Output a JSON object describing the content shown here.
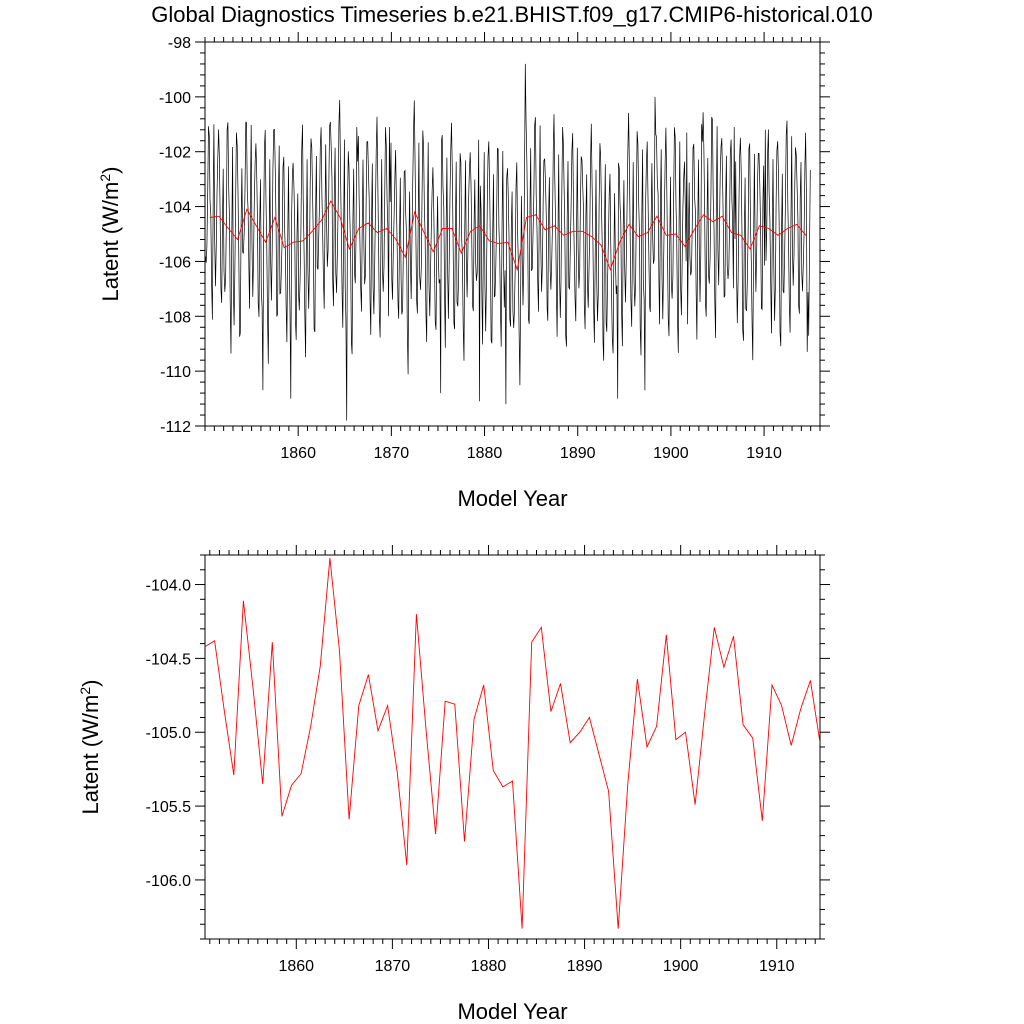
{
  "title": "Global Diagnostics Timeseries b.e21.BHIST.f09_g17.CMIP6-historical.010",
  "colors": {
    "monthly": "#000000",
    "annual": "#ff0000",
    "background": "#ffffff"
  },
  "chart_data": [
    {
      "type": "line",
      "xlabel": "Model Year",
      "ylabel": "Latent (W/m²)",
      "ylabel_main": "Latent (W/m",
      "ylabel_sup": "2",
      "ylabel_end": ")",
      "xlim": [
        1850,
        1916
      ],
      "ylim": [
        -112,
        -98
      ],
      "xticks": [
        1860,
        1870,
        1880,
        1890,
        1900,
        1910
      ],
      "xtick_labels": [
        "1860",
        "1870",
        "1880",
        "1890",
        "1900",
        "1910"
      ],
      "yticks": [
        -112,
        -110,
        -108,
        -106,
        -104,
        -102,
        -100,
        -98
      ],
      "ytick_labels": [
        "-112",
        "-110",
        "-108",
        "-106",
        "-104",
        "-102",
        "-100",
        "-98"
      ],
      "grid": false,
      "series": [
        {
          "color": "#000000",
          "monthly_pattern": [
            -106.4,
            -107.4,
            -106.2,
            -104.1,
            -102.0,
            -101.6,
            -103.5,
            -105.0,
            -107.8,
            -108.7,
            -104.8,
            -102.4
          ],
          "yearly_mean": [
            -104.4,
            -104.35,
            -104.8,
            -105.2,
            -104.1,
            -104.7,
            -105.3,
            -104.4,
            -105.5,
            -105.3,
            -105.25,
            -104.9,
            -104.5,
            -103.8,
            -104.4,
            -105.55,
            -104.8,
            -104.6,
            -104.95,
            -104.8,
            -105.2,
            -105.85,
            -104.2,
            -104.95,
            -105.65,
            -104.8,
            -104.8,
            -105.7,
            -104.9,
            -104.7,
            -105.25,
            -105.35,
            -105.3,
            -106.3,
            -104.4,
            -104.3,
            -104.85,
            -104.7,
            -105.05,
            -104.9,
            -104.9,
            -105.1,
            -105.4,
            -106.3,
            -105.3,
            -104.65,
            -105.1,
            -104.95,
            -104.35,
            -105.05,
            -105.0,
            -105.45,
            -104.85,
            -104.3,
            -104.55,
            -104.35,
            -104.95,
            -105.05,
            -105.55,
            -104.7,
            -104.8,
            -105.05,
            -104.8,
            -104.65,
            -105.05
          ],
          "spikes": [
            [
              1851.0,
              -101.0
            ],
            [
              1852.4,
              -101.2
            ],
            [
              1853.4,
              -101.3
            ],
            [
              1856.2,
              -110.7
            ],
            [
              1859.2,
              -111.0
            ],
            [
              1864.4,
              -101.0
            ],
            [
              1865.2,
              -111.8
            ],
            [
              1866.3,
              -101.1
            ],
            [
              1869.8,
              -101.1
            ],
            [
              1875.3,
              -110.8
            ],
            [
              1879.5,
              -111.1
            ],
            [
              1882.3,
              -111.2
            ],
            [
              1884.4,
              -98.8
            ],
            [
              1888.4,
              -101.1
            ],
            [
              1894.3,
              -111.0
            ],
            [
              1897.2,
              -110.7
            ],
            [
              1898.3,
              -100.0
            ],
            [
              1901.7,
              -101.3
            ],
            [
              1903.3,
              -101.0
            ],
            [
              1906.8,
              -101.1
            ],
            [
              1910.1,
              -101.2
            ],
            [
              1914.6,
              -109.3
            ]
          ]
        },
        {
          "color": "#ff0000",
          "x": [
            1850.5,
            1851.5,
            1852.5,
            1853.5,
            1854.5,
            1855.5,
            1856.5,
            1857.5,
            1858.5,
            1859.5,
            1860.5,
            1861.5,
            1862.5,
            1863.5,
            1864.5,
            1865.5,
            1866.5,
            1867.5,
            1868.5,
            1869.5,
            1870.5,
            1871.5,
            1872.5,
            1873.5,
            1874.5,
            1875.5,
            1876.5,
            1877.5,
            1878.5,
            1879.5,
            1880.5,
            1881.5,
            1882.5,
            1883.5,
            1884.5,
            1885.5,
            1886.5,
            1887.5,
            1888.5,
            1889.5,
            1890.5,
            1891.5,
            1892.5,
            1893.5,
            1894.5,
            1895.5,
            1896.5,
            1897.5,
            1898.5,
            1899.5,
            1900.5,
            1901.5,
            1902.5,
            1903.5,
            1904.5,
            1905.5,
            1906.5,
            1907.5,
            1908.5,
            1909.5,
            1910.5,
            1911.5,
            1912.5,
            1913.5,
            1914.5
          ],
          "values": [
            -104.4,
            -104.35,
            -104.8,
            -105.2,
            -104.1,
            -104.7,
            -105.3,
            -104.4,
            -105.5,
            -105.3,
            -105.25,
            -104.9,
            -104.5,
            -103.8,
            -104.4,
            -105.55,
            -104.8,
            -104.6,
            -104.95,
            -104.8,
            -105.2,
            -105.85,
            -104.2,
            -104.95,
            -105.65,
            -104.8,
            -104.8,
            -105.7,
            -104.9,
            -104.7,
            -105.25,
            -105.35,
            -105.3,
            -106.3,
            -104.4,
            -104.3,
            -104.85,
            -104.7,
            -105.05,
            -104.9,
            -104.9,
            -105.1,
            -105.4,
            -106.3,
            -105.3,
            -104.65,
            -105.1,
            -104.95,
            -104.35,
            -105.05,
            -105.0,
            -105.45,
            -104.85,
            -104.3,
            -104.55,
            -104.35,
            -104.95,
            -105.05,
            -105.55,
            -104.7,
            -104.8,
            -105.05,
            -104.8,
            -104.65,
            -105.05
          ]
        }
      ]
    },
    {
      "type": "line",
      "xlabel": "Model Year",
      "ylabel": "Latent (W/m²)",
      "ylabel_main": "Latent (W/m",
      "ylabel_sup": "2",
      "ylabel_end": ")",
      "xlim": [
        1850.5,
        1914.5
      ],
      "ylim": [
        -106.4,
        -103.8
      ],
      "xticks": [
        1860,
        1870,
        1880,
        1890,
        1900,
        1910
      ],
      "xtick_labels": [
        "1860",
        "1870",
        "1880",
        "1890",
        "1900",
        "1910"
      ],
      "yticks": [
        -106.0,
        -105.5,
        -105.0,
        -104.5,
        -104.0
      ],
      "ytick_labels": [
        "-106.0",
        "-105.5",
        "-105.0",
        "-104.5",
        "-104.0"
      ],
      "grid": false,
      "series": [
        {
          "color": "#ff0000",
          "x": [
            1850.5,
            1851.5,
            1852.5,
            1853.5,
            1854.5,
            1855.5,
            1856.5,
            1857.5,
            1858.5,
            1859.5,
            1860.5,
            1861.5,
            1862.5,
            1863.5,
            1864.5,
            1865.5,
            1866.5,
            1867.5,
            1868.5,
            1869.5,
            1870.5,
            1871.5,
            1872.5,
            1873.5,
            1874.5,
            1875.5,
            1876.5,
            1877.5,
            1878.5,
            1879.5,
            1880.5,
            1881.5,
            1882.5,
            1883.5,
            1884.5,
            1885.5,
            1886.5,
            1887.5,
            1888.5,
            1889.5,
            1890.5,
            1891.5,
            1892.5,
            1893.5,
            1894.5,
            1895.5,
            1896.5,
            1897.5,
            1898.5,
            1899.5,
            1900.5,
            1901.5,
            1902.5,
            1903.5,
            1904.5,
            1905.5,
            1906.5,
            1907.5,
            1908.5,
            1909.5,
            1910.5,
            1911.5,
            1912.5,
            1913.5,
            1914.5
          ],
          "values": [
            -104.42,
            -104.38,
            -104.85,
            -105.29,
            -104.11,
            -104.7,
            -105.35,
            -104.39,
            -105.57,
            -105.36,
            -105.28,
            -104.96,
            -104.55,
            -103.82,
            -104.45,
            -105.59,
            -104.82,
            -104.61,
            -104.99,
            -104.82,
            -105.27,
            -105.9,
            -104.2,
            -104.98,
            -105.69,
            -104.79,
            -104.81,
            -105.74,
            -104.91,
            -104.68,
            -105.26,
            -105.37,
            -105.33,
            -106.33,
            -104.39,
            -104.29,
            -104.86,
            -104.67,
            -105.07,
            -105.0,
            -104.9,
            -105.15,
            -105.4,
            -106.33,
            -105.35,
            -104.64,
            -105.1,
            -104.96,
            -104.34,
            -105.05,
            -105.0,
            -105.49,
            -104.87,
            -104.29,
            -104.56,
            -104.35,
            -104.95,
            -105.04,
            -105.6,
            -104.68,
            -104.82,
            -105.09,
            -104.84,
            -104.65,
            -105.07
          ]
        }
      ]
    }
  ]
}
